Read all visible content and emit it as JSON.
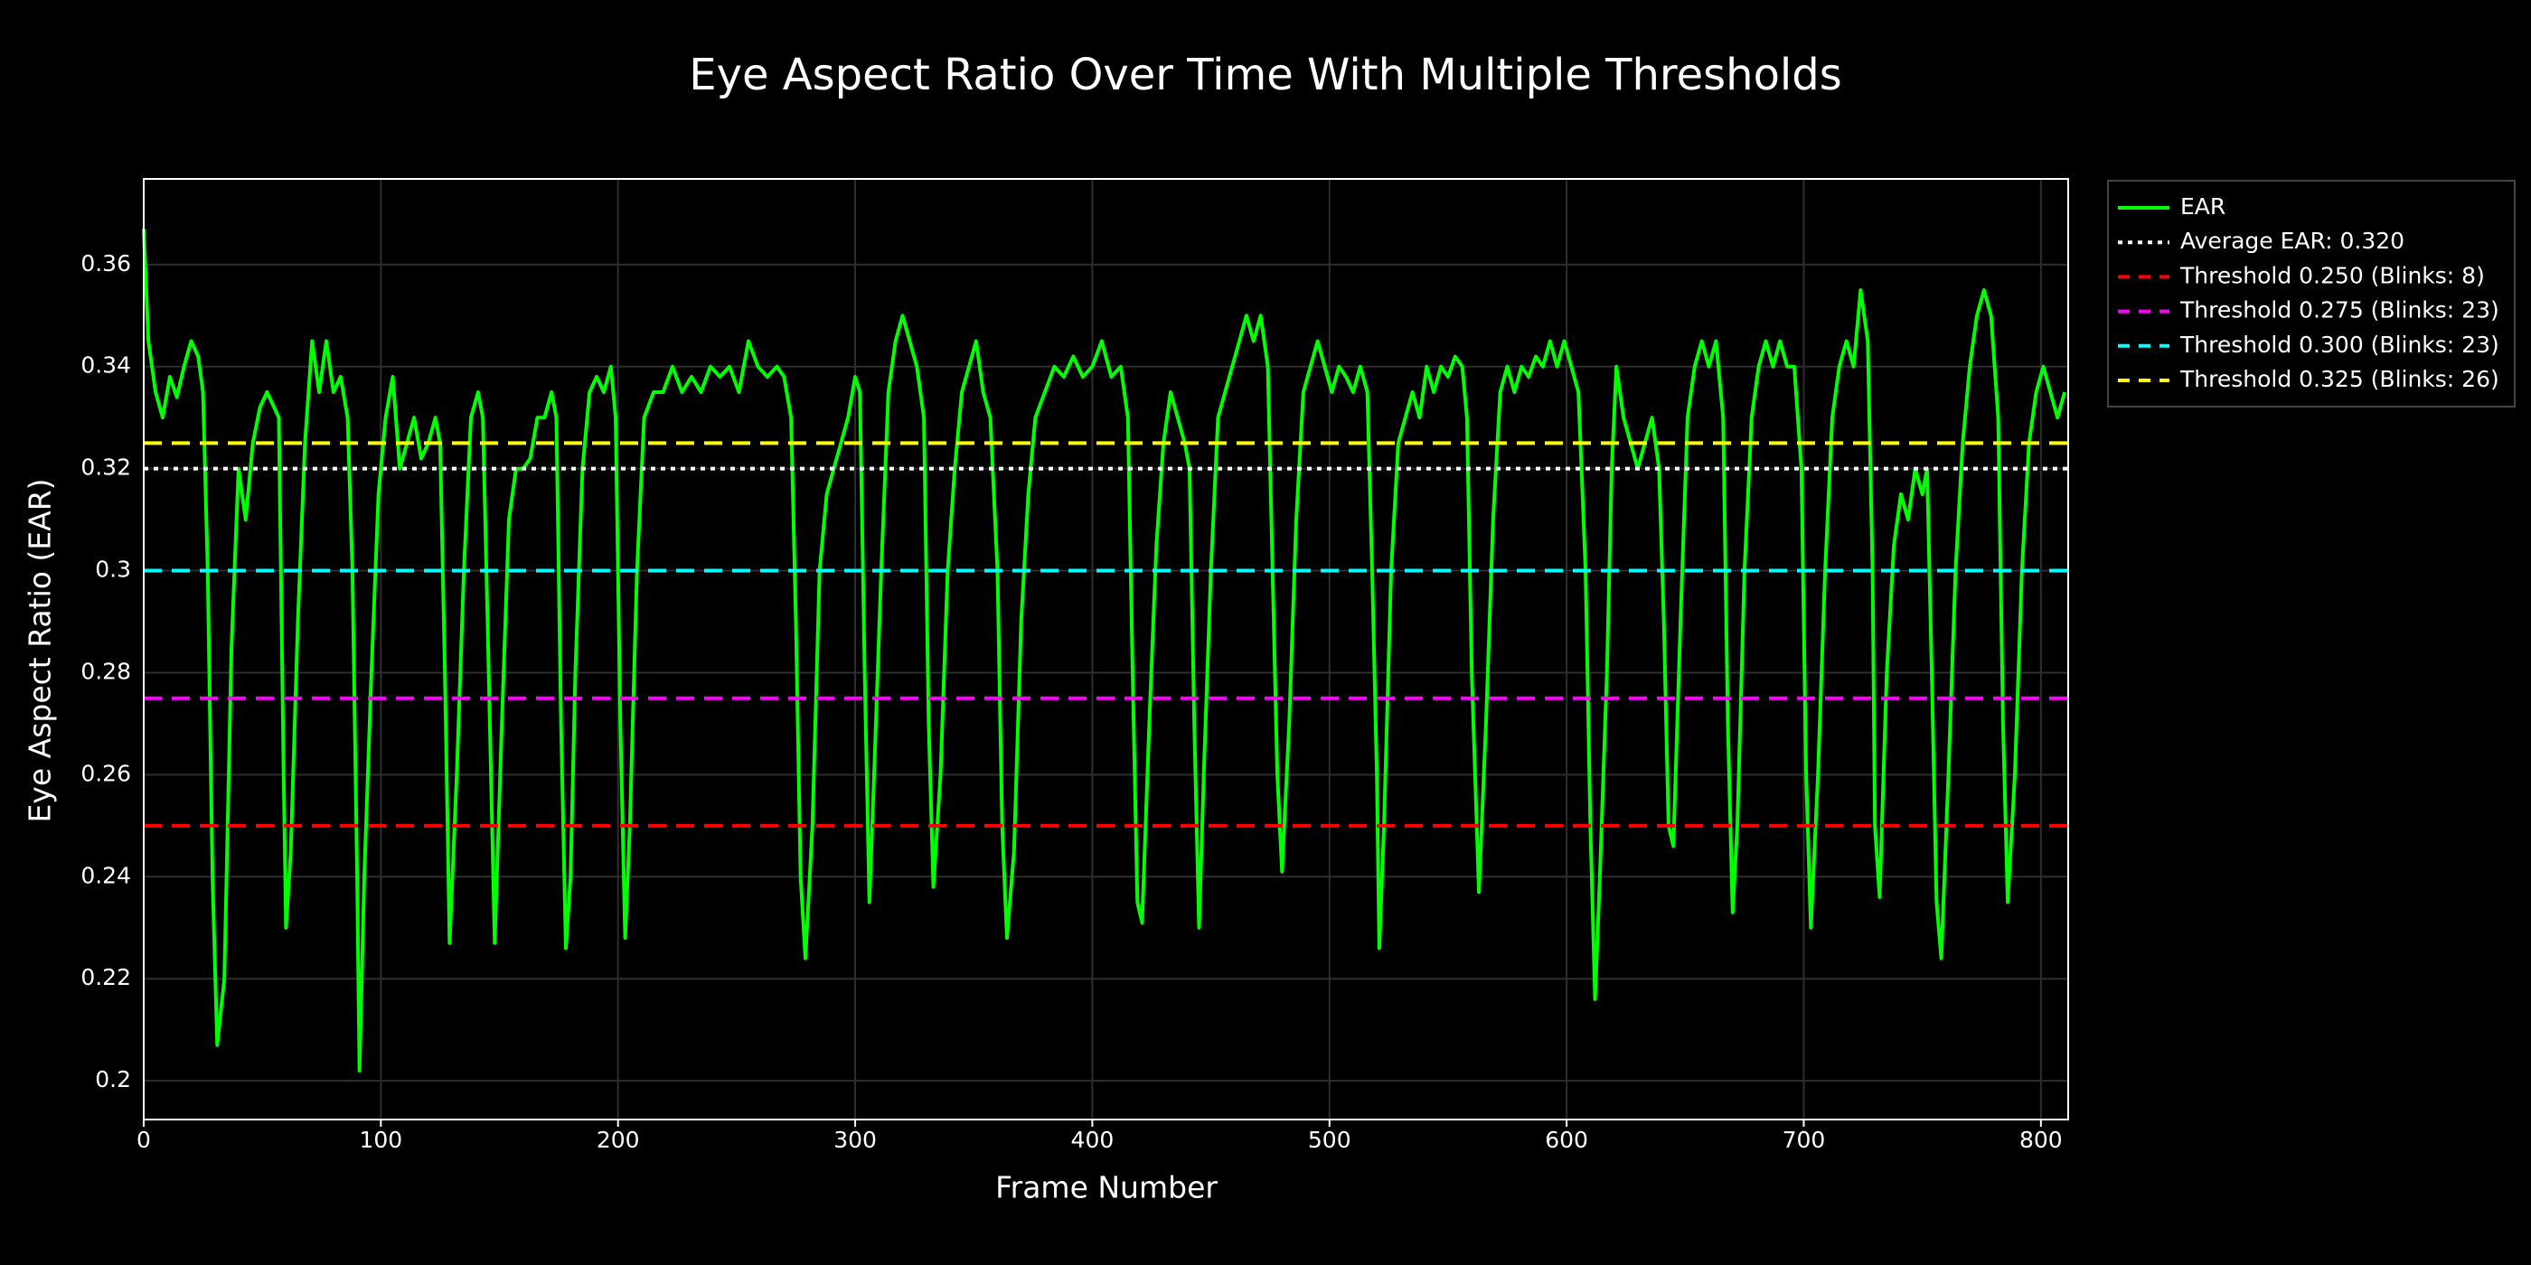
{
  "chart_data": {
    "type": "line",
    "title": "Eye Aspect Ratio Over Time With Multiple Thresholds",
    "xlabel": "Frame Number",
    "ylabel": "Eye Aspect Ratio (EAR)",
    "xlim": [
      0,
      811.5
    ],
    "ylim": [
      0.1924,
      0.3768
    ],
    "xticks": [
      0,
      100,
      200,
      300,
      400,
      500,
      600,
      700,
      800
    ],
    "yticks": [
      0.2,
      0.22,
      0.24,
      0.26,
      0.28,
      0.3,
      0.32,
      0.34,
      0.36
    ],
    "grid": true,
    "legend": "outside-top-right",
    "x": [
      0,
      2,
      5,
      8,
      11,
      14,
      17,
      20,
      23,
      25,
      27,
      29,
      31,
      34,
      37,
      40,
      43,
      46,
      49,
      52,
      55,
      57,
      59,
      60,
      62,
      65,
      68,
      71,
      74,
      77,
      80,
      83,
      86,
      88,
      90,
      91,
      93,
      96,
      99,
      102,
      105,
      108,
      111,
      114,
      117,
      120,
      123,
      125,
      127,
      129,
      132,
      135,
      138,
      141,
      143,
      145,
      148,
      151,
      154,
      157,
      160,
      163,
      166,
      169,
      172,
      174,
      176,
      178,
      180,
      182,
      185,
      188,
      191,
      194,
      197,
      199,
      201,
      203,
      205,
      208,
      211,
      215,
      219,
      223,
      227,
      231,
      235,
      239,
      243,
      247,
      251,
      255,
      259,
      263,
      267,
      270,
      273,
      275,
      277,
      279,
      282,
      285,
      288,
      291,
      294,
      297,
      300,
      302,
      304,
      306,
      308,
      311,
      314,
      317,
      320,
      323,
      326,
      329,
      331,
      333,
      336,
      339,
      342,
      345,
      348,
      351,
      354,
      357,
      360,
      362,
      364,
      367,
      370,
      373,
      376,
      380,
      384,
      388,
      392,
      396,
      400,
      404,
      408,
      412,
      415,
      417,
      419,
      421,
      424,
      427,
      430,
      433,
      436,
      439,
      441,
      443,
      445,
      447,
      450,
      453,
      456,
      459,
      462,
      465,
      468,
      471,
      474,
      476,
      478,
      480,
      483,
      486,
      489,
      492,
      495,
      498,
      501,
      504,
      507,
      510,
      513,
      516,
      518,
      520,
      521,
      523,
      526,
      529,
      532,
      535,
      538,
      541,
      544,
      547,
      550,
      553,
      556,
      558,
      560,
      563,
      566,
      569,
      572,
      575,
      578,
      581,
      584,
      587,
      590,
      593,
      596,
      599,
      602,
      605,
      608,
      610,
      612,
      614,
      617,
      619,
      621,
      624,
      627,
      630,
      633,
      636,
      639,
      641,
      643,
      645,
      648,
      651,
      654,
      657,
      660,
      663,
      666,
      668,
      670,
      672,
      675,
      678,
      681,
      684,
      687,
      690,
      693,
      696,
      699,
      701,
      703,
      706,
      709,
      712,
      715,
      718,
      721,
      724,
      727,
      729,
      730,
      732,
      735,
      738,
      741,
      744,
      747,
      750,
      752,
      754,
      756,
      758,
      761,
      764,
      767,
      770,
      773,
      776,
      779,
      782,
      784,
      786,
      789,
      792,
      795,
      798,
      801,
      804,
      807,
      810
    ],
    "series": [
      {
        "name": "EAR",
        "color": "#00ff00",
        "values": [
          0.367,
          0.345,
          0.335,
          0.33,
          0.338,
          0.334,
          0.34,
          0.345,
          0.342,
          0.335,
          0.3,
          0.24,
          0.207,
          0.22,
          0.285,
          0.32,
          0.31,
          0.325,
          0.332,
          0.335,
          0.332,
          0.33,
          0.26,
          0.23,
          0.245,
          0.29,
          0.325,
          0.345,
          0.335,
          0.345,
          0.335,
          0.338,
          0.33,
          0.3,
          0.24,
          0.202,
          0.24,
          0.28,
          0.315,
          0.33,
          0.338,
          0.32,
          0.325,
          0.33,
          0.322,
          0.325,
          0.33,
          0.325,
          0.28,
          0.227,
          0.26,
          0.3,
          0.33,
          0.335,
          0.33,
          0.29,
          0.227,
          0.27,
          0.31,
          0.32,
          0.32,
          0.322,
          0.33,
          0.33,
          0.335,
          0.33,
          0.27,
          0.226,
          0.24,
          0.28,
          0.32,
          0.335,
          0.338,
          0.335,
          0.34,
          0.33,
          0.27,
          0.228,
          0.25,
          0.3,
          0.33,
          0.335,
          0.335,
          0.34,
          0.335,
          0.338,
          0.335,
          0.34,
          0.338,
          0.34,
          0.335,
          0.345,
          0.34,
          0.338,
          0.34,
          0.338,
          0.33,
          0.29,
          0.24,
          0.224,
          0.25,
          0.3,
          0.315,
          0.32,
          0.325,
          0.33,
          0.338,
          0.335,
          0.28,
          0.235,
          0.26,
          0.3,
          0.335,
          0.345,
          0.35,
          0.345,
          0.34,
          0.33,
          0.27,
          0.238,
          0.26,
          0.3,
          0.32,
          0.335,
          0.34,
          0.345,
          0.335,
          0.33,
          0.3,
          0.25,
          0.228,
          0.245,
          0.29,
          0.315,
          0.33,
          0.335,
          0.34,
          0.338,
          0.342,
          0.338,
          0.34,
          0.345,
          0.338,
          0.34,
          0.33,
          0.28,
          0.235,
          0.231,
          0.27,
          0.305,
          0.325,
          0.335,
          0.33,
          0.325,
          0.32,
          0.27,
          0.23,
          0.26,
          0.3,
          0.33,
          0.335,
          0.34,
          0.345,
          0.35,
          0.345,
          0.35,
          0.34,
          0.3,
          0.26,
          0.241,
          0.27,
          0.31,
          0.335,
          0.34,
          0.345,
          0.34,
          0.335,
          0.34,
          0.338,
          0.335,
          0.34,
          0.335,
          0.3,
          0.26,
          0.226,
          0.25,
          0.3,
          0.325,
          0.33,
          0.335,
          0.33,
          0.34,
          0.335,
          0.34,
          0.338,
          0.342,
          0.34,
          0.33,
          0.28,
          0.237,
          0.27,
          0.31,
          0.335,
          0.34,
          0.335,
          0.34,
          0.338,
          0.342,
          0.34,
          0.345,
          0.34,
          0.345,
          0.34,
          0.335,
          0.3,
          0.25,
          0.216,
          0.24,
          0.28,
          0.32,
          0.34,
          0.33,
          0.325,
          0.32,
          0.325,
          0.33,
          0.32,
          0.29,
          0.25,
          0.246,
          0.29,
          0.33,
          0.34,
          0.345,
          0.34,
          0.345,
          0.33,
          0.27,
          0.233,
          0.25,
          0.3,
          0.33,
          0.34,
          0.345,
          0.34,
          0.345,
          0.34,
          0.34,
          0.32,
          0.26,
          0.23,
          0.26,
          0.3,
          0.33,
          0.34,
          0.345,
          0.34,
          0.355,
          0.345,
          0.3,
          0.25,
          0.236,
          0.28,
          0.305,
          0.315,
          0.31,
          0.32,
          0.315,
          0.32,
          0.28,
          0.235,
          0.224,
          0.26,
          0.3,
          0.325,
          0.34,
          0.35,
          0.355,
          0.35,
          0.33,
          0.27,
          0.235,
          0.26,
          0.3,
          0.325,
          0.335,
          0.34,
          0.335,
          0.33,
          0.335
        ]
      }
    ],
    "hlines": [
      {
        "name": "Average EAR: 0.320",
        "value": 0.32,
        "color": "#ffffff",
        "dash": "dotted"
      },
      {
        "name": "Threshold 0.250 (Blinks: 8)",
        "value": 0.25,
        "color": "#ff0000",
        "dash": "dashed"
      },
      {
        "name": "Threshold 0.275 (Blinks: 23)",
        "value": 0.275,
        "color": "#ff00ff",
        "dash": "dashed"
      },
      {
        "name": "Threshold 0.300 (Blinks: 23)",
        "value": 0.3,
        "color": "#00ffff",
        "dash": "dashed"
      },
      {
        "name": "Threshold 0.325 (Blinks: 26)",
        "value": 0.325,
        "color": "#ffff00",
        "dash": "dashed"
      }
    ]
  }
}
